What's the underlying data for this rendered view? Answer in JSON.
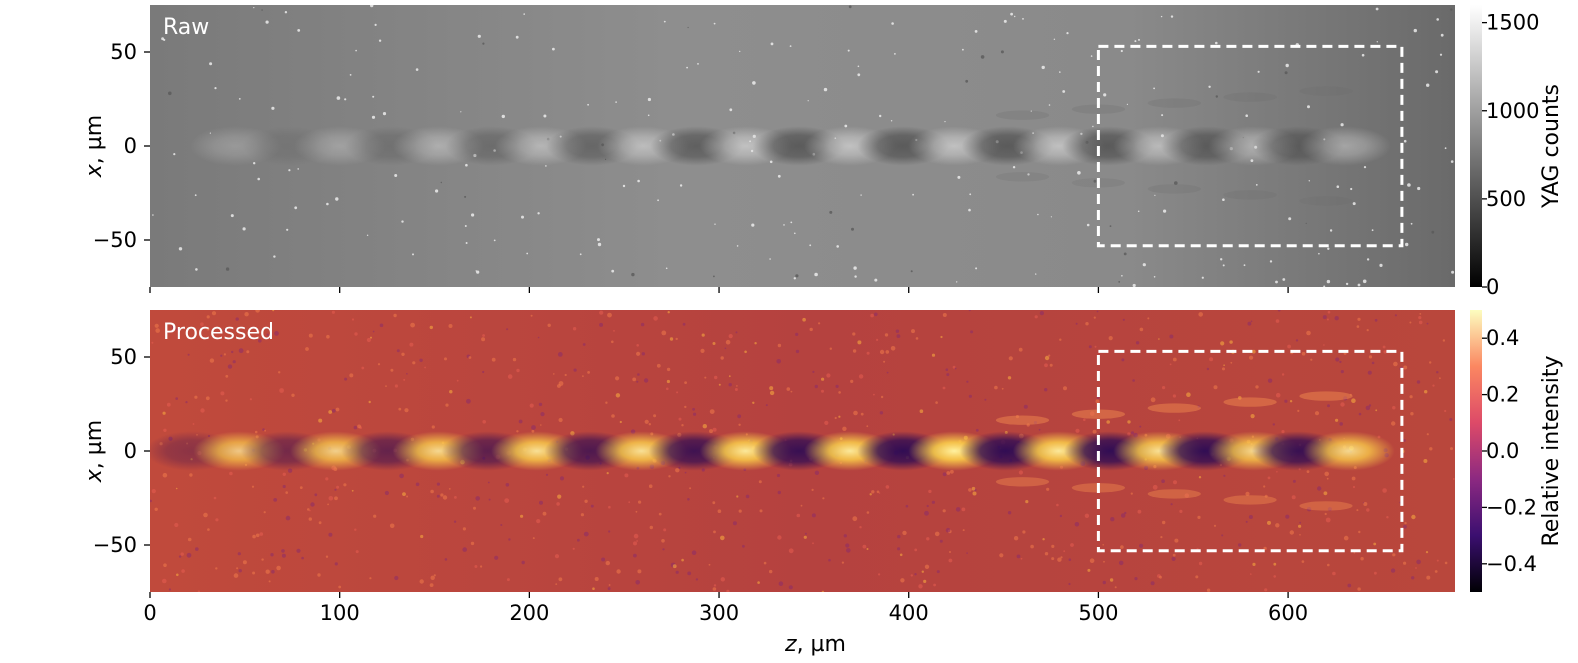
{
  "chart_data": [
    {
      "type": "heatmap",
      "panel_label": "Raw",
      "colormap": "gray",
      "background_color": "#8a8a8a",
      "x_range": [
        0,
        688
      ],
      "y_range": [
        -75,
        75
      ],
      "yticks": [
        50,
        0,
        -50
      ],
      "ytick_labels": [
        "50",
        "0",
        "−50"
      ],
      "ylabel_italic": "x",
      "ylabel_rest": ", µm",
      "colorbar": {
        "label": "YAG counts",
        "range": [
          0,
          1600
        ],
        "ticks": [
          1500,
          1000,
          500,
          0
        ],
        "tick_labels": [
          "1500",
          "1000",
          "500",
          "0"
        ],
        "stops": [
          "#000000",
          "#ffffff"
        ]
      },
      "roi": {
        "z": [
          500,
          660
        ],
        "x": [
          -53,
          53
        ]
      },
      "spots": [
        {
          "z": 45,
          "kind": "bright",
          "strength": 0.25
        },
        {
          "z": 73,
          "kind": "dark",
          "strength": 0.15
        },
        {
          "z": 100,
          "kind": "bright",
          "strength": 0.3
        },
        {
          "z": 127,
          "kind": "dark",
          "strength": 0.25
        },
        {
          "z": 152,
          "kind": "bright",
          "strength": 0.4
        },
        {
          "z": 180,
          "kind": "dark",
          "strength": 0.35
        },
        {
          "z": 206,
          "kind": "bright",
          "strength": 0.45
        },
        {
          "z": 233,
          "kind": "dark",
          "strength": 0.45
        },
        {
          "z": 260,
          "kind": "bright",
          "strength": 0.5
        },
        {
          "z": 288,
          "kind": "dark",
          "strength": 0.55
        },
        {
          "z": 314,
          "kind": "bright",
          "strength": 0.55
        },
        {
          "z": 342,
          "kind": "dark",
          "strength": 0.6
        },
        {
          "z": 369,
          "kind": "bright",
          "strength": 0.55
        },
        {
          "z": 397,
          "kind": "dark",
          "strength": 0.6
        },
        {
          "z": 424,
          "kind": "bright",
          "strength": 0.55
        },
        {
          "z": 452,
          "kind": "dark",
          "strength": 0.6
        },
        {
          "z": 479,
          "kind": "bright",
          "strength": 0.55
        },
        {
          "z": 505,
          "kind": "dark",
          "strength": 0.6
        },
        {
          "z": 532,
          "kind": "bright",
          "strength": 0.5
        },
        {
          "z": 557,
          "kind": "dark",
          "strength": 0.55
        },
        {
          "z": 582,
          "kind": "bright",
          "strength": 0.45
        },
        {
          "z": 605,
          "kind": "dark",
          "strength": 0.5
        },
        {
          "z": 630,
          "kind": "bright",
          "strength": 0.4
        }
      ]
    },
    {
      "type": "heatmap",
      "panel_label": "Processed",
      "colormap": "inferno",
      "background_color": "#b8453e",
      "x_range": [
        0,
        688
      ],
      "y_range": [
        -75,
        75
      ],
      "xticks": [
        0,
        100,
        200,
        300,
        400,
        500,
        600
      ],
      "xtick_labels": [
        "0",
        "100",
        "200",
        "300",
        "400",
        "500",
        "600"
      ],
      "xlabel_italic": "z",
      "xlabel_rest": ", µm",
      "yticks": [
        50,
        0,
        -50
      ],
      "ytick_labels": [
        "50",
        "0",
        "−50"
      ],
      "ylabel_italic": "x",
      "ylabel_rest": ", µm",
      "colorbar": {
        "label": "Relative intensity",
        "range": [
          -0.5,
          0.5
        ],
        "ticks": [
          0.4,
          0.2,
          0.0,
          -0.2,
          -0.4
        ],
        "tick_labels": [
          "0.4",
          "0.2",
          "0.0",
          "−0.2",
          "−0.4"
        ],
        "stops": [
          "#000004",
          "#3b0f70",
          "#8c2981",
          "#dd4a68",
          "#fb8761",
          "#fcfdbf"
        ]
      },
      "roi": {
        "z": [
          500,
          660
        ],
        "x": [
          -53,
          53
        ]
      },
      "spots": [
        {
          "z": 22,
          "kind": "dark",
          "strength": 0.35
        },
        {
          "z": 47,
          "kind": "bright",
          "strength": 0.75
        },
        {
          "z": 72,
          "kind": "dark",
          "strength": 0.5
        },
        {
          "z": 98,
          "kind": "bright",
          "strength": 0.8
        },
        {
          "z": 125,
          "kind": "dark",
          "strength": 0.6
        },
        {
          "z": 152,
          "kind": "bright",
          "strength": 0.85
        },
        {
          "z": 178,
          "kind": "dark",
          "strength": 0.65
        },
        {
          "z": 204,
          "kind": "bright",
          "strength": 0.9
        },
        {
          "z": 232,
          "kind": "dark",
          "strength": 0.75
        },
        {
          "z": 259,
          "kind": "bright",
          "strength": 0.9
        },
        {
          "z": 287,
          "kind": "dark",
          "strength": 0.85
        },
        {
          "z": 314,
          "kind": "bright",
          "strength": 0.95
        },
        {
          "z": 342,
          "kind": "dark",
          "strength": 0.9
        },
        {
          "z": 369,
          "kind": "bright",
          "strength": 0.95
        },
        {
          "z": 397,
          "kind": "dark",
          "strength": 0.95
        },
        {
          "z": 424,
          "kind": "bright",
          "strength": 1.0
        },
        {
          "z": 451,
          "kind": "dark",
          "strength": 0.95
        },
        {
          "z": 479,
          "kind": "bright",
          "strength": 0.95
        },
        {
          "z": 506,
          "kind": "dark",
          "strength": 0.95
        },
        {
          "z": 532,
          "kind": "bright",
          "strength": 0.9
        },
        {
          "z": 556,
          "kind": "dark",
          "strength": 0.95
        },
        {
          "z": 582,
          "kind": "bright",
          "strength": 0.85
        },
        {
          "z": 605,
          "kind": "dark",
          "strength": 0.9
        },
        {
          "z": 632,
          "kind": "bright",
          "strength": 0.85
        }
      ]
    }
  ]
}
